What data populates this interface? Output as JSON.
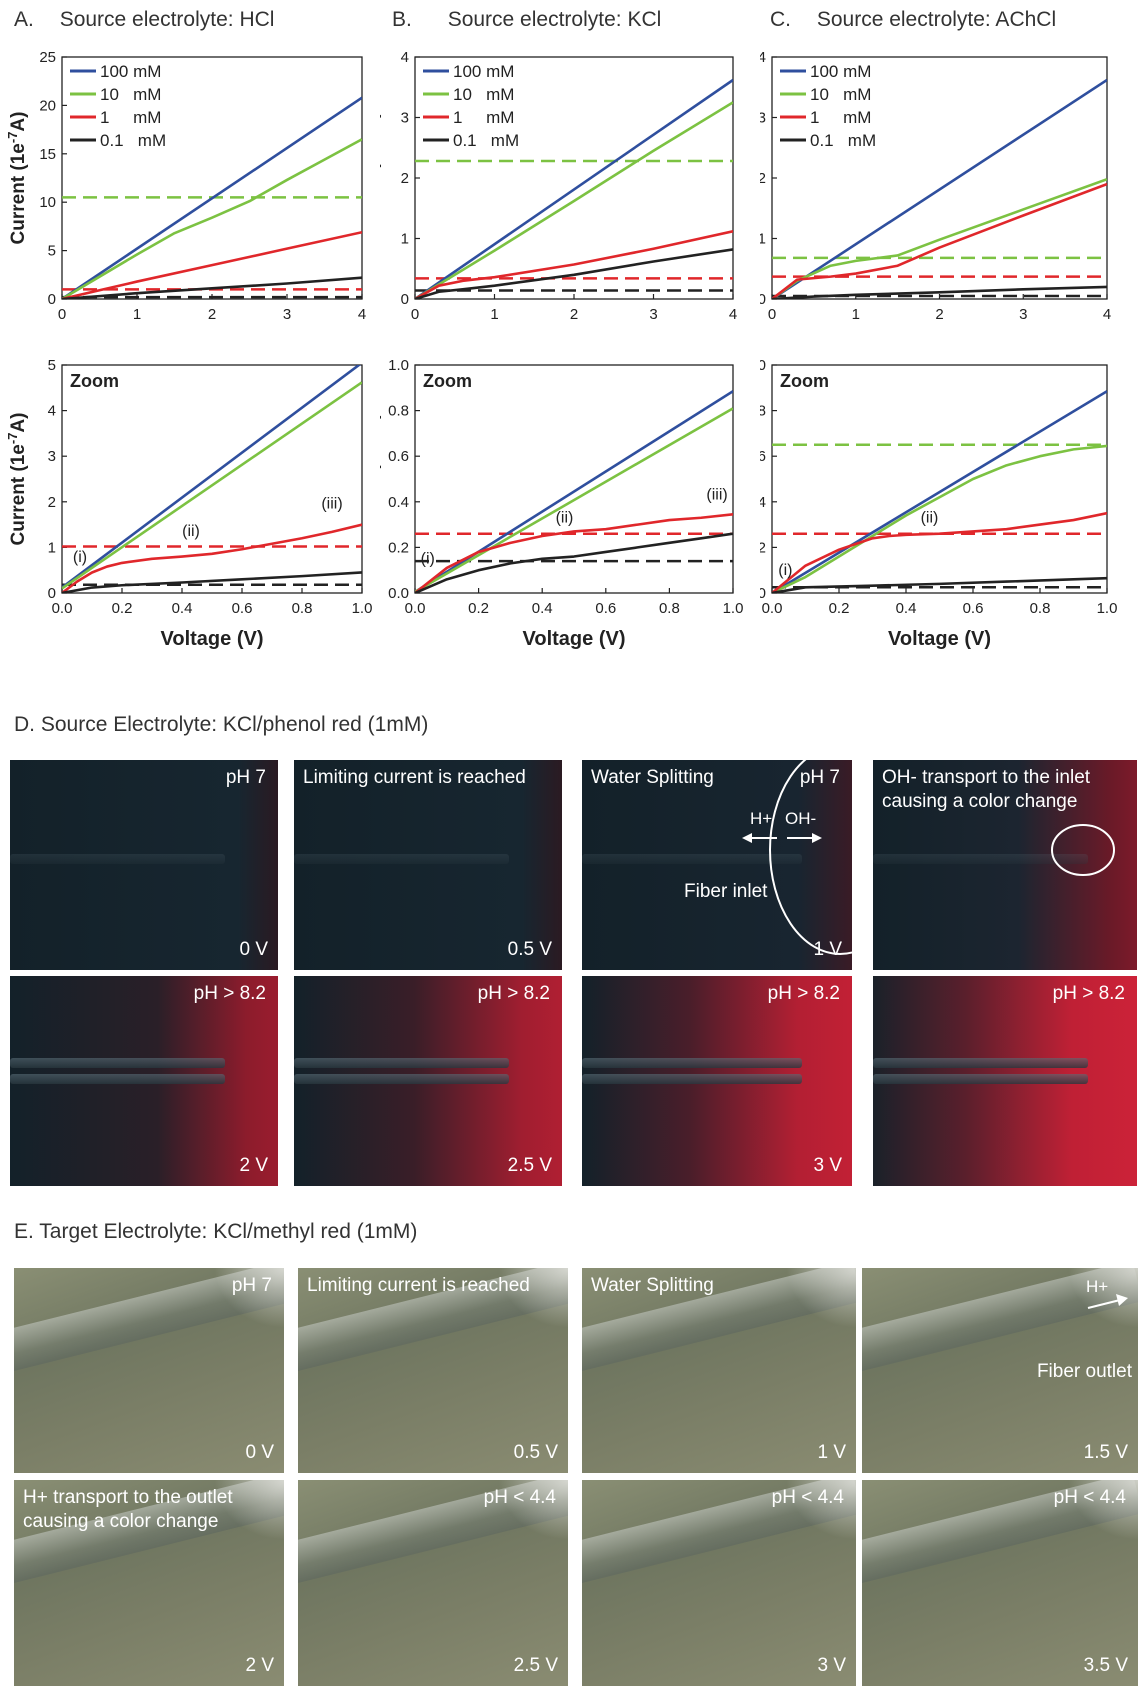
{
  "charts_section": {
    "top_titles": [
      {
        "letter": "A.",
        "text": "Source electrolyte: HCl"
      },
      {
        "letter": "B.",
        "text": "Source electrolyte: KCl"
      },
      {
        "letter": "C.",
        "text": "Source electrolyte: AChCl"
      }
    ],
    "ylabel": "Current (1e",
    "ylabel_sup": "-7",
    "ylabel_end": "A)",
    "xlabel": "Voltage (V)",
    "zoom_label": "Zoom"
  },
  "colors": {
    "blue": "#2f4f9e",
    "green": "#7cc242",
    "red": "#e0272b",
    "black": "#222222"
  },
  "chart_data": [
    {
      "type": "line",
      "panel": "A-full",
      "xlim": [
        0,
        4
      ],
      "ylim": [
        0,
        25
      ],
      "xticks": [
        "0",
        "1",
        "2",
        "3",
        "4"
      ],
      "yticks": [
        "0",
        "5",
        "10",
        "15",
        "20",
        "25"
      ],
      "legend": [
        "100 mM",
        "10   mM",
        "1     mM",
        "0.1   mM"
      ],
      "series": [
        {
          "name": "100 mM",
          "color": "blue",
          "x": [
            0,
            4
          ],
          "y": [
            0,
            20.8
          ]
        },
        {
          "name": "10 mM",
          "color": "green",
          "x": [
            0,
            1,
            1.5,
            2,
            2.5,
            3,
            3.5,
            4
          ],
          "y": [
            0,
            4.6,
            6.8,
            8.4,
            10.1,
            12.3,
            14.4,
            16.5
          ]
        },
        {
          "name": "1 mM",
          "color": "red",
          "x": [
            0,
            0.5,
            1,
            2,
            3,
            4
          ],
          "y": [
            0,
            0.9,
            1.8,
            3.5,
            5.2,
            6.9
          ]
        },
        {
          "name": "0.1 mM",
          "color": "black",
          "x": [
            0,
            1,
            2,
            3,
            4
          ],
          "y": [
            0,
            0.6,
            1.1,
            1.6,
            2.2
          ]
        }
      ],
      "dashed": [
        {
          "color": "green",
          "y": 10.5
        },
        {
          "color": "red",
          "y": 1.0
        },
        {
          "color": "black",
          "y": 0.2
        }
      ]
    },
    {
      "type": "line",
      "panel": "B-full",
      "xlim": [
        0,
        4
      ],
      "ylim": [
        0,
        4
      ],
      "xticks": [
        "0",
        "1",
        "2",
        "3",
        "4"
      ],
      "yticks": [
        "0",
        "1",
        "2",
        "3",
        "4"
      ],
      "legend": [
        "100 mM",
        "10   mM",
        "1     mM",
        "0.1   mM"
      ],
      "series": [
        {
          "name": "100 mM",
          "color": "blue",
          "x": [
            0,
            4
          ],
          "y": [
            0,
            3.62
          ]
        },
        {
          "name": "10 mM",
          "color": "green",
          "x": [
            0,
            1,
            2,
            3,
            4
          ],
          "y": [
            0,
            0.8,
            1.62,
            2.45,
            3.25
          ]
        },
        {
          "name": "1 mM",
          "color": "red",
          "x": [
            0,
            0.3,
            0.6,
            1,
            2,
            3,
            4
          ],
          "y": [
            0,
            0.22,
            0.3,
            0.36,
            0.57,
            0.83,
            1.12
          ]
        },
        {
          "name": "0.1 mM",
          "color": "black",
          "x": [
            0,
            0.3,
            0.6,
            1,
            2,
            3,
            4
          ],
          "y": [
            0,
            0.12,
            0.16,
            0.22,
            0.4,
            0.62,
            0.82
          ]
        }
      ],
      "dashed": [
        {
          "color": "green",
          "y": 2.28
        },
        {
          "color": "red",
          "y": 0.34
        },
        {
          "color": "black",
          "y": 0.14
        }
      ]
    },
    {
      "type": "line",
      "panel": "C-full",
      "xlim": [
        0,
        4
      ],
      "ylim": [
        0,
        4
      ],
      "xticks": [
        "0",
        "1",
        "2",
        "3",
        "4"
      ],
      "yticks": [
        "0",
        "1",
        "2",
        "3",
        "4"
      ],
      "legend": [
        "100 mM",
        "10   mM",
        "1     mM",
        "0.1   mM"
      ],
      "series": [
        {
          "name": "100 mM",
          "color": "blue",
          "x": [
            0,
            4
          ],
          "y": [
            0,
            3.62
          ]
        },
        {
          "name": "10 mM",
          "color": "green",
          "x": [
            0,
            0.3,
            0.7,
            1,
            1.5,
            2,
            3,
            4
          ],
          "y": [
            0,
            0.3,
            0.55,
            0.63,
            0.72,
            0.98,
            1.48,
            1.98
          ]
        },
        {
          "name": "1 mM",
          "color": "red",
          "x": [
            0,
            0.3,
            0.7,
            1,
            1.5,
            2,
            3,
            4
          ],
          "y": [
            0,
            0.32,
            0.37,
            0.42,
            0.55,
            0.85,
            1.38,
            1.9
          ]
        },
        {
          "name": "0.1 mM",
          "color": "black",
          "x": [
            0,
            0.5,
            1,
            2,
            3,
            4
          ],
          "y": [
            0,
            0.04,
            0.07,
            0.11,
            0.16,
            0.2
          ]
        }
      ],
      "dashed": [
        {
          "color": "green",
          "y": 0.68
        },
        {
          "color": "red",
          "y": 0.37
        },
        {
          "color": "black",
          "y": 0.05
        }
      ]
    },
    {
      "type": "line",
      "panel": "A-zoom",
      "xlim": [
        0,
        1
      ],
      "ylim": [
        0,
        5
      ],
      "xticks": [
        "0.0",
        "0.2",
        "0.4",
        "0.6",
        "0.8",
        "1.0"
      ],
      "yticks": [
        "0",
        "1",
        "2",
        "3",
        "4",
        "5"
      ],
      "series": [
        {
          "name": "100 mM",
          "color": "blue",
          "x": [
            0,
            1
          ],
          "y": [
            0.12,
            5.05
          ]
        },
        {
          "name": "10 mM",
          "color": "green",
          "x": [
            0,
            1
          ],
          "y": [
            0.1,
            4.62
          ]
        },
        {
          "name": "1 mM",
          "color": "red",
          "x": [
            0,
            0.05,
            0.1,
            0.15,
            0.2,
            0.3,
            0.4,
            0.5,
            0.6,
            0.7,
            0.8,
            0.9,
            1
          ],
          "y": [
            0,
            0.25,
            0.45,
            0.58,
            0.66,
            0.75,
            0.8,
            0.86,
            0.96,
            1.08,
            1.2,
            1.34,
            1.5
          ]
        },
        {
          "name": "0.1 mM",
          "color": "black",
          "x": [
            0,
            0.1,
            0.2,
            0.4,
            0.6,
            0.8,
            1
          ],
          "y": [
            0,
            0.12,
            0.17,
            0.23,
            0.3,
            0.37,
            0.45
          ]
        }
      ],
      "dashed": [
        {
          "color": "red",
          "y": 1.02
        },
        {
          "color": "black",
          "y": 0.18
        }
      ],
      "annotations": [
        {
          "text": "(i)",
          "x": 0.06,
          "y": 0.68
        },
        {
          "text": "(ii)",
          "x": 0.43,
          "y": 1.25
        },
        {
          "text": "(iii)",
          "x": 0.9,
          "y": 1.85
        }
      ]
    },
    {
      "type": "line",
      "panel": "B-zoom",
      "xlim": [
        0,
        1
      ],
      "ylim": [
        0,
        1
      ],
      "xticks": [
        "0.0",
        "0.2",
        "0.4",
        "0.6",
        "0.8",
        "1.0"
      ],
      "yticks": [
        "0.0",
        "0.2",
        "0.4",
        "0.6",
        "0.8",
        "1.0"
      ],
      "series": [
        {
          "name": "100 mM",
          "color": "blue",
          "x": [
            0,
            1
          ],
          "y": [
            0.005,
            0.885
          ]
        },
        {
          "name": "10 mM",
          "color": "green",
          "x": [
            0,
            1
          ],
          "y": [
            0.005,
            0.81
          ]
        },
        {
          "name": "1 mM",
          "color": "red",
          "x": [
            0,
            0.1,
            0.2,
            0.3,
            0.4,
            0.5,
            0.6,
            0.7,
            0.8,
            0.9,
            1
          ],
          "y": [
            0,
            0.11,
            0.18,
            0.22,
            0.25,
            0.27,
            0.28,
            0.3,
            0.32,
            0.33,
            0.345
          ]
        },
        {
          "name": "0.1 mM",
          "color": "black",
          "x": [
            0,
            0.1,
            0.2,
            0.3,
            0.4,
            0.5,
            0.6,
            0.7,
            0.8,
            0.9,
            1
          ],
          "y": [
            0,
            0.06,
            0.1,
            0.13,
            0.15,
            0.16,
            0.18,
            0.2,
            0.22,
            0.24,
            0.26
          ]
        }
      ],
      "dashed": [
        {
          "color": "red",
          "y": 0.26
        },
        {
          "color": "black",
          "y": 0.14
        }
      ],
      "annotations": [
        {
          "text": "(i)",
          "x": 0.04,
          "y": 0.13
        },
        {
          "text": "(ii)",
          "x": 0.47,
          "y": 0.31
        },
        {
          "text": "(iii)",
          "x": 0.95,
          "y": 0.41
        }
      ]
    },
    {
      "type": "line",
      "panel": "C-zoom",
      "xlim": [
        0,
        1
      ],
      "ylim": [
        0,
        1
      ],
      "xticks": [
        "0.0",
        "0.2",
        "0.4",
        "0.6",
        "0.8",
        "1.0"
      ],
      "yticks": [
        "0.0",
        "0.2",
        "0.4",
        "0.6",
        "0.8",
        "1.0"
      ],
      "series": [
        {
          "name": "100 mM",
          "color": "blue",
          "x": [
            0,
            1
          ],
          "y": [
            0.0,
            0.885
          ]
        },
        {
          "name": "10 mM",
          "color": "green",
          "x": [
            0,
            0.1,
            0.2,
            0.3,
            0.4,
            0.5,
            0.6,
            0.7,
            0.8,
            0.9,
            1
          ],
          "y": [
            0,
            0.07,
            0.16,
            0.25,
            0.34,
            0.42,
            0.5,
            0.56,
            0.6,
            0.63,
            0.645
          ]
        },
        {
          "name": "1 mM",
          "color": "red",
          "x": [
            0,
            0.1,
            0.2,
            0.3,
            0.35,
            0.4,
            0.5,
            0.6,
            0.7,
            0.8,
            0.9,
            1
          ],
          "y": [
            0,
            0.12,
            0.19,
            0.24,
            0.25,
            0.255,
            0.26,
            0.27,
            0.28,
            0.3,
            0.32,
            0.35
          ]
        },
        {
          "name": "0.1 mM",
          "color": "black",
          "x": [
            0,
            0.1,
            0.3,
            0.5,
            0.7,
            0.9,
            1
          ],
          "y": [
            0,
            0.025,
            0.032,
            0.04,
            0.05,
            0.06,
            0.065
          ]
        }
      ],
      "dashed": [
        {
          "color": "green",
          "y": 0.65
        },
        {
          "color": "red",
          "y": 0.26
        },
        {
          "color": "black",
          "y": 0.025
        }
      ],
      "annotations": [
        {
          "text": "(i)",
          "x": 0.04,
          "y": 0.08
        },
        {
          "text": "(ii)",
          "x": 0.47,
          "y": 0.31
        }
      ]
    }
  ],
  "section_d": {
    "title": "D.   Source Electrolyte: KCl/phenol red (1mM)",
    "panels": [
      {
        "top_left": "",
        "top_right": "pH 7",
        "bottom_right": "0 V"
      },
      {
        "top_left": "Limiting current is reached",
        "top_right": "",
        "bottom_right": "0.5 V"
      },
      {
        "top_left": "Water Splitting",
        "top_right": "pH 7",
        "bottom_right": "1 V"
      },
      {
        "top_left": "OH- transport to the inlet\ncausing a color change",
        "top_right": "",
        "bottom_right": ""
      },
      {
        "top_left": "",
        "top_right": "pH > 8.2",
        "bottom_right": "2 V"
      },
      {
        "top_left": "",
        "top_right": "pH > 8.2",
        "bottom_right": "2.5 V"
      },
      {
        "top_left": "",
        "top_right": "pH > 8.2",
        "bottom_right": "3 V"
      },
      {
        "top_left": "",
        "top_right": "pH > 8.2",
        "bottom_right": ""
      }
    ],
    "hplus": "H+",
    "ohminus": "OH-",
    "fiber_inlet": "Fiber inlet"
  },
  "section_e": {
    "title": "E.   Target Electrolyte: KCl/methyl red (1mM)",
    "panels": [
      {
        "top_left": "",
        "top_right": "pH 7",
        "bottom_right": "0 V"
      },
      {
        "top_left": "Limiting current is reached",
        "top_right": "",
        "bottom_right": "0.5 V"
      },
      {
        "top_left": "Water Splitting",
        "top_right": "",
        "bottom_right": "1 V"
      },
      {
        "top_left": "",
        "top_right": "",
        "bottom_right": "1.5 V"
      },
      {
        "top_left": "H+ transport to the outlet\ncausing a color change",
        "top_right": "",
        "bottom_right": "2 V"
      },
      {
        "top_left": "",
        "top_right": "pH < 4.4",
        "bottom_right": "2.5 V"
      },
      {
        "top_left": "",
        "top_right": "pH < 4.4",
        "bottom_right": "3 V"
      },
      {
        "top_left": "",
        "top_right": "pH < 4.4",
        "bottom_right": "3.5 V"
      }
    ],
    "hplus": "H+",
    "fiber_outlet": "Fiber outlet"
  }
}
